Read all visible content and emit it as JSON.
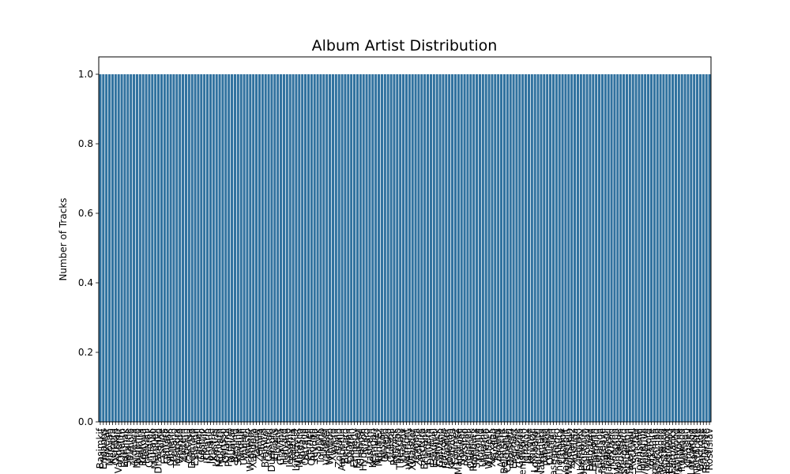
{
  "chart_data": {
    "type": "bar",
    "title": "Album Artist Distribution",
    "xlabel": "",
    "ylabel": "Number of Tracks",
    "ylim": [
      0,
      1.05
    ],
    "yticks": [
      "0.0",
      "0.2",
      "0.4",
      "0.6",
      "0.8",
      "1.0"
    ],
    "bar_color": "#31729f",
    "legend": "none",
    "grid": false,
    "categories": [
      "Basimkif",
      "Eridanus",
      "Tavelar",
      "Mirovan",
      "Kelpora",
      "Ostrilan",
      "Vandemir",
      "Quelith",
      "Borunak",
      "Sefaline",
      "Trimolo",
      "Ardesca",
      "Nuvento",
      "Palmira",
      "Rostova",
      "Helvani",
      "Cimbrek",
      "Lutavio",
      "Marquell",
      "Dravenko",
      "Ysolde",
      "Fentara",
      "Grivask",
      "Olmerin",
      "Pellano",
      "Tesmora",
      "Virendo",
      "Zaltern",
      "Abelun",
      "Corvisa",
      "Delmaro",
      "Estevon",
      "Farnell",
      "Gastrio",
      "Hollvik",
      "Ismarin",
      "Jorvane",
      "Kastrel",
      "Lemuria",
      "Morvath",
      "Nerisso",
      "Orlandi",
      "Pyrenne",
      "Quavar",
      "Reslind",
      "Solvane",
      "Tarquin",
      "Umbrell",
      "Velisto",
      "Wrenmor",
      "Xandera",
      "Yarlow",
      "Zemira",
      "Altoris",
      "Bramvel",
      "Cestari",
      "Dunmore",
      "Elvaris",
      "Florent",
      "Gravina",
      "Halvard",
      "Istvane",
      "Jessamy",
      "Kolbrin",
      "Lindqvist",
      "Maresco",
      "Novalin",
      "Ostrava",
      "Pernell",
      "Quorian",
      "Rivolta",
      "Sarvik",
      "Tolvane",
      "Ulster",
      "Vasquel",
      "Wintrop",
      "Xavero",
      "Yelvin",
      "Zorvano",
      "Amberlin",
      "Belcaro",
      "Corwen",
      "Dastrin",
      "Emberly",
      "Faulkner",
      "Grendal",
      "Hyperion",
      "Ilvaro",
      "Jastrem",
      "Kerrigan",
      "Lanvier",
      "Montrez",
      "Nestori",
      "Orvello",
      "Prasko",
      "Quintal",
      "Rennick",
      "Stavros",
      "Thessaly",
      "Uvarov",
      "Valmont",
      "Westerly",
      "Xylander",
      "Yevgeni",
      "Zadkine",
      "Arcturo",
      "Brisvane",
      "Caldera",
      "Deverin",
      "Esquivel",
      "Fenwick",
      "Galvano",
      "Harrowe",
      "Iskander",
      "Jovellan",
      "Kestrova",
      "Lorimer",
      "Mandrake",
      "Noxwell",
      "Orsinio",
      "Pendrell",
      "Quarrick",
      "Rothbury",
      "Sylvaine",
      "Torvald",
      "Ulvenne",
      "Varesco",
      "Whitlock",
      "Xerxana",
      "Yardley",
      "Zanetti",
      "Albrecht",
      "Belmonte",
      "Castellan",
      "Dorsetti",
      "Everhart",
      "Falcone",
      "Gallardo",
      "Hemsworth",
      "Ignatov",
      "Jarrowe",
      "Kovacic",
      "Lombardi",
      "Marchetti",
      "Nakamura",
      "Oberlin",
      "Petrakis",
      "Quinlan",
      "Rasmussen",
      "Santoro",
      "Thornbury",
      "Ustinov",
      "Vanderbilt",
      "Waldstein",
      "Ximenez",
      "Yoshida",
      "Zielinski",
      "Abernathy",
      "Bergstrom",
      "Calloway",
      "Dalgaard",
      "Ellsworth",
      "Fairchild",
      "Gustafson",
      "Hargreave",
      "Ingersoll",
      "Jankowski",
      "Kirkland",
      "Lindgren",
      "Montague",
      "Nordstrom",
      "Ostergaard",
      "Pemberton",
      "Quatermain",
      "Rockwell",
      "Sinclair",
      "Townsend",
      "Underhill",
      "Villeneuve",
      "Wexford",
      "Yorkshire",
      "Zimmerman",
      "Ashcombe",
      "Blackwood",
      "Crestwood",
      "Davenport",
      "Eastwood",
      "Fairbanks",
      "Greenwood",
      "Hawthorne",
      "Ironwood",
      "Jettison",
      "Kingsley",
      "Lockwood",
      "Mayfield",
      "Northcote",
      "Oakridge",
      "Primrose",
      "Redgrave",
      "Rostislav"
    ],
    "values": [
      1,
      1,
      1,
      1,
      1,
      1,
      1,
      1,
      1,
      1,
      1,
      1,
      1,
      1,
      1,
      1,
      1,
      1,
      1,
      1,
      1,
      1,
      1,
      1,
      1,
      1,
      1,
      1,
      1,
      1,
      1,
      1,
      1,
      1,
      1,
      1,
      1,
      1,
      1,
      1,
      1,
      1,
      1,
      1,
      1,
      1,
      1,
      1,
      1,
      1,
      1,
      1,
      1,
      1,
      1,
      1,
      1,
      1,
      1,
      1,
      1,
      1,
      1,
      1,
      1,
      1,
      1,
      1,
      1,
      1,
      1,
      1,
      1,
      1,
      1,
      1,
      1,
      1,
      1,
      1,
      1,
      1,
      1,
      1,
      1,
      1,
      1,
      1,
      1,
      1,
      1,
      1,
      1,
      1,
      1,
      1,
      1,
      1,
      1,
      1,
      1,
      1,
      1,
      1,
      1,
      1,
      1,
      1,
      1,
      1,
      1,
      1,
      1,
      1,
      1,
      1,
      1,
      1,
      1,
      1,
      1,
      1,
      1,
      1,
      1,
      1,
      1,
      1,
      1,
      1,
      1,
      1,
      1,
      1,
      1,
      1,
      1,
      1,
      1,
      1,
      1,
      1,
      1,
      1,
      1,
      1,
      1,
      1,
      1,
      1,
      1,
      1,
      1,
      1,
      1,
      1,
      1,
      1,
      1,
      1,
      1,
      1,
      1,
      1,
      1,
      1,
      1,
      1,
      1,
      1,
      1,
      1,
      1,
      1,
      1,
      1,
      1,
      1,
      1,
      1,
      1,
      1,
      1,
      1,
      1,
      1,
      1,
      1,
      1,
      1,
      1,
      1,
      1,
      1,
      1,
      1,
      1,
      1,
      1,
      1
    ]
  }
}
